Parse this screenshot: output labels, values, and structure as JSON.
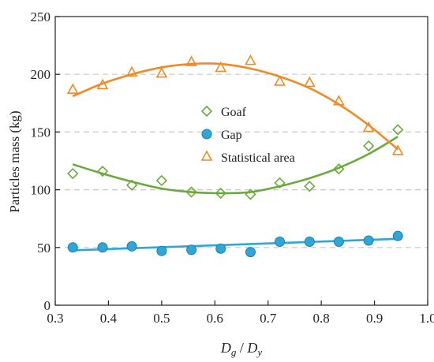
{
  "chart_data": {
    "type": "scatter",
    "xlabel_main": "D",
    "xlabel_sub1": "g",
    "xlabel_sep": " / ",
    "xlabel_sub2": "y",
    "ylabel": "Particles mass (kg)",
    "xlim": [
      0.3,
      1.0
    ],
    "ylim": [
      0,
      250
    ],
    "x_ticks": [
      "0.3",
      "0.4",
      "0.5",
      "0.6",
      "0.7",
      "0.8",
      "0.9",
      "1.0"
    ],
    "y_ticks": [
      "0",
      "50",
      "100",
      "150",
      "200",
      "250"
    ],
    "grid": "horizontal dashed",
    "legend_position": "center",
    "series": [
      {
        "name": "Goaf",
        "marker": "diamond-open",
        "color": "#6aaa3a",
        "x": [
          0.333,
          0.389,
          0.444,
          0.5,
          0.556,
          0.611,
          0.667,
          0.722,
          0.778,
          0.833,
          0.889,
          0.944
        ],
        "y": [
          114,
          116,
          104,
          108,
          98,
          97,
          96,
          106,
          103,
          118,
          138,
          152
        ],
        "fit_curve": [
          [
            0.333,
            122
          ],
          [
            0.389,
            114
          ],
          [
            0.444,
            107
          ],
          [
            0.5,
            101
          ],
          [
            0.556,
            98
          ],
          [
            0.611,
            97
          ],
          [
            0.667,
            98
          ],
          [
            0.722,
            103
          ],
          [
            0.778,
            110
          ],
          [
            0.833,
            119
          ],
          [
            0.889,
            131
          ],
          [
            0.944,
            146
          ]
        ]
      },
      {
        "name": "Gap",
        "marker": "circle-filled",
        "color": "#2ea7d8",
        "x": [
          0.333,
          0.389,
          0.444,
          0.5,
          0.556,
          0.611,
          0.667,
          0.722,
          0.778,
          0.833,
          0.889,
          0.944
        ],
        "y": [
          50,
          50,
          51,
          47,
          48,
          49,
          46,
          55,
          55,
          55,
          56,
          60
        ],
        "fit_curve": [
          [
            0.333,
            47.5
          ],
          [
            0.944,
            57.5
          ]
        ]
      },
      {
        "name": "Statistical area",
        "marker": "triangle-open",
        "color": "#f08a24",
        "x": [
          0.333,
          0.389,
          0.444,
          0.5,
          0.556,
          0.611,
          0.667,
          0.722,
          0.778,
          0.833,
          0.889,
          0.944
        ],
        "y": [
          187,
          191,
          202,
          201,
          211,
          206,
          212,
          194,
          193,
          177,
          154,
          134
        ],
        "fit_curve": [
          [
            0.333,
            181
          ],
          [
            0.389,
            192
          ],
          [
            0.444,
            200
          ],
          [
            0.5,
            206
          ],
          [
            0.556,
            209
          ],
          [
            0.611,
            209
          ],
          [
            0.667,
            205
          ],
          [
            0.722,
            198
          ],
          [
            0.778,
            188
          ],
          [
            0.833,
            174
          ],
          [
            0.889,
            156
          ],
          [
            0.944,
            135
          ]
        ]
      }
    ]
  }
}
